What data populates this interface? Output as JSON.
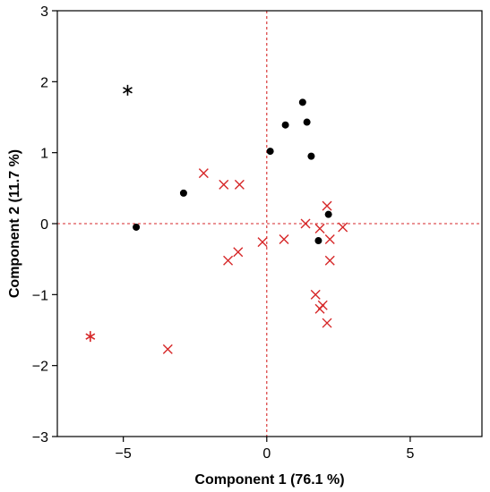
{
  "chart_data": {
    "type": "scatter",
    "title": "",
    "xlabel": "Component 1 (76.1 %)",
    "ylabel": "Component 2 (11.7 %)",
    "xlim": [
      -7.3,
      7.5
    ],
    "ylim": [
      -3,
      3
    ],
    "xticks": [
      -5,
      0,
      5
    ],
    "xtick_labels": [
      "−5",
      "0",
      "5"
    ],
    "yticks": [
      -3,
      -2,
      -1,
      0,
      1,
      2,
      3
    ],
    "ytick_labels": [
      "−3",
      "−2",
      "−1",
      "0",
      "1",
      "2",
      "3"
    ],
    "grid": false,
    "legend": "none",
    "reference_lines": {
      "x": 0,
      "y": 0,
      "style": "dashed",
      "color": "#d62728"
    },
    "series": [
      {
        "marker": "dot",
        "color": "#000000",
        "points": [
          [
            1.25,
            1.71
          ],
          [
            0.65,
            1.39
          ],
          [
            1.4,
            1.43
          ],
          [
            0.12,
            1.02
          ],
          [
            1.55,
            0.95
          ],
          [
            -2.9,
            0.43
          ],
          [
            -4.55,
            -0.05
          ],
          [
            2.15,
            0.13
          ],
          [
            1.8,
            -0.24
          ]
        ]
      },
      {
        "marker": "star",
        "color": "#000000",
        "points": [
          [
            -4.85,
            1.88
          ]
        ]
      },
      {
        "marker": "x",
        "color": "#d62728",
        "points": [
          [
            -2.2,
            0.71
          ],
          [
            -1.5,
            0.55
          ],
          [
            -0.95,
            0.55
          ],
          [
            2.1,
            0.25
          ],
          [
            1.35,
            0.0
          ],
          [
            1.85,
            -0.07
          ],
          [
            2.65,
            -0.05
          ],
          [
            2.2,
            -0.22
          ],
          [
            0.6,
            -0.22
          ],
          [
            -0.15,
            -0.26
          ],
          [
            -1.0,
            -0.4
          ],
          [
            -1.35,
            -0.52
          ],
          [
            2.2,
            -0.52
          ],
          [
            1.7,
            -1.0
          ],
          [
            1.95,
            -1.15
          ],
          [
            1.85,
            -1.2
          ],
          [
            2.1,
            -1.4
          ],
          [
            -3.45,
            -1.77
          ]
        ]
      },
      {
        "marker": "star",
        "color": "#d62728",
        "points": [
          [
            -6.15,
            -1.59
          ]
        ]
      }
    ]
  }
}
